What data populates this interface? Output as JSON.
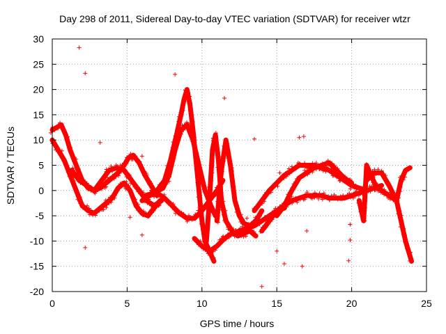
{
  "chart_data": {
    "type": "scatter",
    "title": "Day 298 of 2011, Sidereal Day-to-day VTEC variation (SDTVAR) for receiver wtzr",
    "xlabel": "GPS time / hours",
    "ylabel": "SDTVAR / TECUs",
    "xlim": [
      0,
      25
    ],
    "ylim": [
      -20,
      30
    ],
    "xticks": [
      0,
      5,
      10,
      15,
      20,
      25
    ],
    "yticks": [
      -20,
      -15,
      -10,
      -5,
      0,
      5,
      10,
      15,
      20,
      25,
      30
    ],
    "grid": true,
    "marker": "+",
    "series": [
      {
        "name": "SDTVAR",
        "color": "#ff0000",
        "tracks": [
          {
            "x": [
              0.0,
              0.3,
              0.6,
              0.9,
              1.2,
              1.6,
              2.0,
              2.4,
              2.8,
              3.2,
              3.6,
              4.0,
              4.4,
              4.8,
              5.1,
              5.4,
              5.8,
              6.2,
              6.6,
              7.0
            ],
            "y": [
              12.0,
              12.5,
              13.0,
              11.0,
              8.0,
              5.0,
              2.0,
              0.5,
              0.0,
              0.5,
              1.5,
              2.5,
              3.5,
              5.0,
              6.5,
              7.0,
              5.5,
              3.0,
              1.0,
              -1.0
            ]
          },
          {
            "x": [
              0.0,
              0.4,
              0.8,
              1.2,
              1.6,
              2.0,
              2.4,
              2.8,
              3.2,
              3.6,
              4.0,
              4.4,
              4.8,
              5.2,
              5.6,
              6.0,
              6.4,
              6.8,
              7.2
            ],
            "y": [
              10.0,
              8.0,
              6.0,
              3.0,
              0.0,
              -3.0,
              -4.0,
              -4.5,
              -3.5,
              -2.5,
              -1.5,
              0.5,
              1.5,
              0.0,
              -3.0,
              -4.5,
              -5.0,
              -3.5,
              -2.0
            ]
          },
          {
            "x": [
              1.3,
              1.8,
              2.3,
              2.8,
              3.3,
              3.8,
              4.3,
              4.8,
              5.3,
              5.8,
              6.3,
              6.8,
              7.3
            ],
            "y": [
              4.0,
              2.0,
              1.0,
              0.0,
              2.0,
              4.0,
              4.5,
              4.0,
              2.0,
              0.0,
              -2.0,
              -3.0,
              -2.0
            ]
          },
          {
            "x": [
              7.0,
              7.5,
              7.9,
              8.3,
              8.6,
              8.8,
              9.0,
              9.2,
              9.4,
              9.6,
              9.8,
              10.0,
              10.2,
              10.5,
              10.8
            ],
            "y": [
              0.0,
              2.0,
              6.0,
              11.0,
              15.0,
              18.0,
              20.0,
              17.0,
              12.0,
              6.0,
              0.0,
              -6.0,
              -10.0,
              -12.0,
              -14.0
            ]
          },
          {
            "x": [
              6.2,
              6.8,
              7.4,
              7.8,
              8.2,
              8.6,
              9.0,
              9.4,
              9.8,
              10.2,
              10.6,
              10.9
            ],
            "y": [
              -1.0,
              -0.5,
              0.5,
              3.0,
              8.0,
              12.0,
              13.0,
              10.0,
              5.0,
              0.0,
              -3.0,
              -5.0
            ]
          },
          {
            "x": [
              6.0,
              6.5,
              7.0,
              7.5,
              8.0,
              8.5,
              9.0,
              9.5,
              10.0,
              10.5,
              11.0,
              11.4
            ],
            "y": [
              -2.0,
              -1.0,
              -0.5,
              -1.5,
              -3.0,
              -4.5,
              -5.5,
              -5.5,
              -4.0,
              -2.0,
              0.0,
              2.0
            ]
          },
          {
            "x": [
              10.3,
              10.5,
              10.7,
              10.9,
              11.1,
              11.3,
              11.6,
              12.0,
              12.4,
              12.8,
              13.2,
              13.6
            ],
            "y": [
              -10.0,
              -2.0,
              8.0,
              11.0,
              6.0,
              -2.0,
              -6.0,
              -8.0,
              -9.0,
              -8.5,
              -8.0,
              -9.0
            ]
          },
          {
            "x": [
              11.0,
              11.3,
              11.6,
              11.9,
              12.2,
              12.5,
              12.8,
              13.2,
              13.6,
              14.0
            ],
            "y": [
              -6.0,
              4.0,
              10.0,
              5.0,
              -2.0,
              -5.0,
              -6.5,
              -7.0,
              -6.0,
              -4.0
            ]
          },
          {
            "x": [
              9.5,
              10.0,
              10.5,
              11.0,
              11.5,
              12.0,
              12.5,
              13.0,
              13.5,
              14.0,
              14.5,
              15.0,
              15.5
            ],
            "y": [
              -9.5,
              -11.0,
              -12.0,
              -11.0,
              -9.5,
              -8.5,
              -8.0,
              -7.5,
              -7.0,
              -6.0,
              -5.0,
              -4.0,
              -3.5
            ]
          },
          {
            "x": [
              13.5,
              14.0,
              14.5,
              15.0,
              15.5,
              16.0,
              16.5,
              17.0,
              17.5,
              18.0,
              18.5,
              19.0,
              19.5,
              20.0,
              20.5,
              21.0
            ],
            "y": [
              -4.0,
              -2.0,
              0.0,
              1.5,
              3.0,
              4.0,
              5.0,
              5.0,
              5.0,
              4.5,
              4.0,
              3.0,
              2.0,
              1.0,
              0.5,
              0.0
            ]
          },
          {
            "x": [
              14.0,
              14.5,
              15.0,
              15.5,
              16.0,
              16.5,
              17.0,
              17.5,
              18.0,
              18.5,
              19.0,
              19.5,
              20.0,
              20.5,
              21.0,
              21.5,
              22.0
            ],
            "y": [
              -8.0,
              -6.0,
              -4.0,
              -3.0,
              -2.0,
              -1.5,
              -1.0,
              -1.0,
              -1.0,
              -1.5,
              -1.5,
              -1.5,
              -1.0,
              -0.5,
              0.0,
              0.5,
              1.0
            ]
          },
          {
            "x": [
              15.0,
              15.5,
              16.0,
              16.5,
              17.0,
              17.5,
              18.0,
              18.5,
              19.0,
              19.5,
              20.0
            ],
            "y": [
              -5.0,
              -3.0,
              0.0,
              2.5,
              3.5,
              4.5,
              5.0,
              5.5,
              4.0,
              2.5,
              1.5
            ]
          },
          {
            "x": [
              20.5,
              20.8,
              21.0,
              21.3,
              21.6,
              22.0,
              22.5,
              23.0,
              23.3,
              23.6,
              23.9
            ],
            "y": [
              -2.0,
              -6.0,
              5.0,
              3.0,
              1.0,
              0.0,
              -1.0,
              -2.0,
              2.0,
              4.0,
              4.5
            ]
          },
          {
            "x": [
              21.0,
              21.5,
              22.0,
              22.5,
              23.0,
              23.3,
              23.6,
              23.8,
              24.0
            ],
            "y": [
              2.0,
              3.5,
              3.5,
              1.0,
              -2.0,
              -6.0,
              -10.0,
              -12.0,
              -14.0
            ]
          }
        ],
        "outliers": [
          [
            1.8,
            28.3
          ],
          [
            2.2,
            23.2
          ],
          [
            2.2,
            -11.3
          ],
          [
            3.2,
            9.5
          ],
          [
            5.2,
            -5.3
          ],
          [
            6.0,
            -8.8
          ],
          [
            6.0,
            6.8
          ],
          [
            8.2,
            23.0
          ],
          [
            11.5,
            18.3
          ],
          [
            13.5,
            10.2
          ],
          [
            14.0,
            -19.0
          ],
          [
            15.5,
            -14.5
          ],
          [
            16.5,
            10.5
          ],
          [
            16.7,
            -15.0
          ],
          [
            16.8,
            10.7
          ],
          [
            17.0,
            -8.0
          ],
          [
            19.8,
            -13.9
          ],
          [
            19.9,
            -6.7
          ],
          [
            19.9,
            -9.8
          ],
          [
            15.2,
            3.5
          ],
          [
            15.0,
            -12.0
          ],
          [
            13.0,
            -5.5
          ]
        ]
      }
    ]
  }
}
